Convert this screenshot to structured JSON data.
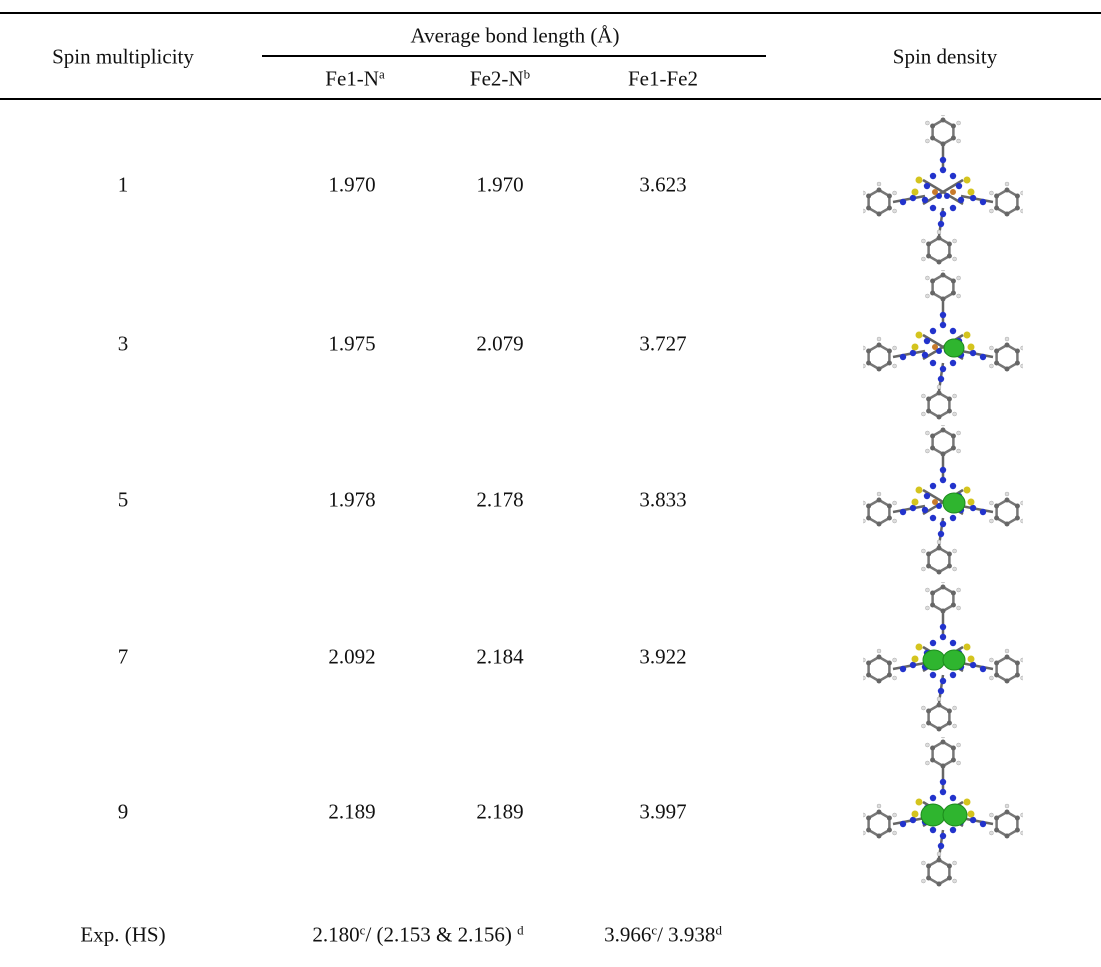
{
  "table": {
    "header": {
      "spin": "Spin multiplicity",
      "group": "Average bond length (Å)",
      "sub": [
        {
          "text": "Fe1-N",
          "note": "a"
        },
        {
          "text": "Fe2-N",
          "note": "b"
        },
        {
          "text": "Fe1-Fe2"
        }
      ],
      "density": "Spin density"
    },
    "rows": [
      [
        "1",
        "1.970",
        "1.970",
        "3.623"
      ],
      [
        "3",
        "1.975",
        "2.079",
        "3.727"
      ],
      [
        "5",
        "1.978",
        "2.178",
        "3.833"
      ],
      [
        "7",
        "2.092",
        "2.184",
        "3.922"
      ],
      [
        "9",
        "2.189",
        "2.189",
        "3.997"
      ]
    ],
    "exp": {
      "label": "Exp. (HS)",
      "fe_n": [
        "2.180",
        "c",
        "/ (2.153 & 2.156) ",
        "d"
      ],
      "fe_fe": [
        "3.966",
        "c",
        "/ 3.938",
        "d"
      ]
    }
  }
}
